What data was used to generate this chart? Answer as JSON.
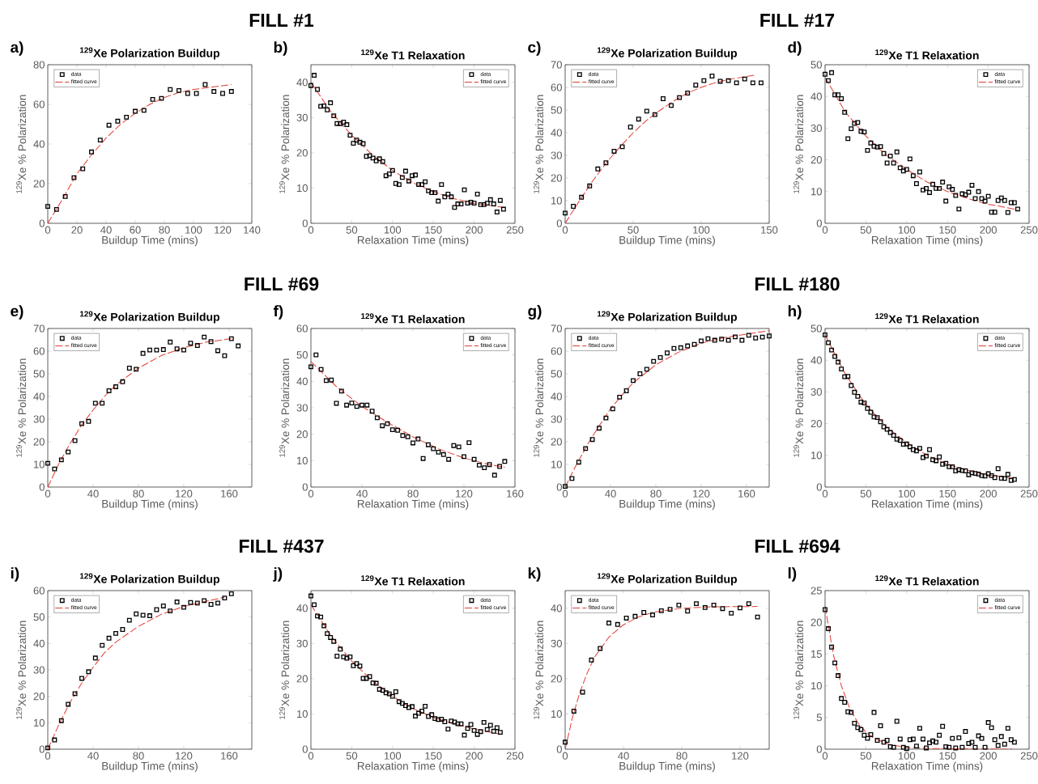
{
  "chart_data": [
    {
      "type": "scatter",
      "title": "$^{129}$Xe Polarization Buildup",
      "xlabel": "Buildup Time (mins)",
      "ylabel": "$^{129}$Xe % Polarization",
      "annotations": [
        "a)",
        "FILL #1"
      ],
      "xlim": [
        0,
        140
      ],
      "xticks": [
        0,
        20,
        40,
        60,
        80,
        100,
        120,
        140
      ],
      "ylim": [
        0,
        80
      ],
      "yticks": [
        0,
        20,
        40,
        60,
        80
      ],
      "legend": "top left",
      "series": [
        {
          "name": "data",
          "marker": "square",
          "color": "#000000",
          "x": [
            0,
            6,
            12,
            18,
            24,
            30,
            36,
            42,
            48,
            54,
            60,
            66,
            72,
            78,
            84,
            90,
            96,
            102,
            108,
            114,
            120,
            126
          ],
          "values": [
            8.5,
            7,
            13.5,
            23,
            27.5,
            36,
            42,
            49.5,
            51.5,
            53.5,
            56.5,
            57,
            62.5,
            63,
            67.5,
            67,
            65.5,
            65.5,
            70,
            66.5,
            65.5,
            66.5
          ]
        },
        {
          "name": "fitted curve",
          "type": "line",
          "line_style": "dashed",
          "color": "#e03c31",
          "x": [
            0,
            10,
            20,
            30,
            40,
            50,
            60,
            70,
            80,
            90,
            100,
            110,
            126
          ],
          "values": [
            0,
            12,
            25,
            34.5,
            43,
            50,
            55.5,
            60,
            63.5,
            66,
            67.5,
            68.5,
            70
          ]
        }
      ]
    },
    {
      "type": "scatter",
      "title": "$^{129}$Xe T1 Relaxation",
      "xlabel": "Relaxation Time (mins)",
      "ylabel": "$^{129}$Xe % Polarization",
      "annotations": [
        "b)"
      ],
      "xlim": [
        0,
        250
      ],
      "xticks": [
        0,
        50,
        100,
        150,
        200,
        250
      ],
      "ylim": [
        0,
        45
      ],
      "yticks": [
        0,
        10,
        20,
        30,
        40
      ],
      "legend": "top right",
      "series": [
        {
          "name": "data",
          "marker": "square",
          "color": "#000000",
          "x": [
            0,
            4,
            8,
            12,
            16,
            20,
            24,
            28,
            32,
            36,
            40,
            44,
            48,
            52,
            56,
            60,
            64,
            68,
            72,
            76,
            80,
            84,
            88,
            92,
            96,
            100,
            104,
            108,
            112,
            116,
            120,
            124,
            128,
            132,
            136,
            140,
            144,
            148,
            152,
            156,
            160,
            164,
            168,
            172,
            176,
            180,
            184,
            188,
            192,
            196,
            200,
            204,
            208,
            212,
            216,
            220,
            224,
            228,
            232,
            236
          ],
          "values": [
            39.1,
            42,
            38,
            33.2,
            33.3,
            32.2,
            34.2,
            30.5,
            28.3,
            28.3,
            28.7,
            28,
            25,
            22.7,
            23.6,
            23,
            22.6,
            19,
            19.2,
            18.5,
            17.7,
            18.3,
            17.5,
            13.5,
            14,
            15,
            11.3,
            11,
            13,
            14.8,
            12,
            13.5,
            13.7,
            11,
            11,
            11.8,
            9.2,
            8.7,
            8.7,
            6.3,
            11,
            7.5,
            8.3,
            7.5,
            4.5,
            5.5,
            5.5,
            9.5,
            5.7,
            6,
            5.7,
            8.3,
            5.3,
            5.3,
            5.7,
            6.7,
            5.5,
            3.2,
            6.5,
            4
          ]
        },
        {
          "name": "fitted curve",
          "type": "line",
          "line_style": "dashed",
          "color": "#e03c31",
          "x": [
            0,
            25,
            50,
            75,
            100,
            125,
            150,
            175,
            200,
            236
          ],
          "values": [
            40,
            31.5,
            25,
            19.5,
            15,
            11.5,
            9,
            7,
            5.7,
            4.5
          ]
        }
      ]
    },
    {
      "type": "scatter",
      "title": "$^{129}$Xe Polarization Buildup",
      "xlabel": "Buildup Time (mins)",
      "ylabel": "$^{129}$Xe % Polarization",
      "annotations": [
        "c)",
        "FILL #17"
      ],
      "xlim": [
        0,
        150
      ],
      "xticks": [
        0,
        50,
        100,
        150
      ],
      "ylim": [
        0,
        70
      ],
      "yticks": [
        0,
        10,
        20,
        30,
        40,
        50,
        60,
        70
      ],
      "legend": "top left",
      "series": [
        {
          "name": "data",
          "marker": "square",
          "color": "#000000",
          "x": [
            0,
            6,
            12,
            18,
            24,
            30,
            36,
            42,
            48,
            54,
            60,
            66,
            72,
            78,
            84,
            90,
            96,
            102,
            108,
            114,
            120,
            126,
            132,
            138,
            144
          ],
          "values": [
            4.5,
            7.5,
            11.5,
            16.5,
            24,
            26.7,
            31.8,
            33.8,
            42.5,
            46,
            49.5,
            48,
            55,
            52,
            55.5,
            57.5,
            61,
            63,
            65,
            62.7,
            63,
            62,
            63.7,
            62,
            62
          ]
        },
        {
          "name": "fitted curve",
          "type": "line",
          "line_style": "dashed",
          "color": "#e03c31",
          "x": [
            0,
            10,
            20,
            30,
            40,
            50,
            60,
            70,
            80,
            90,
            100,
            110,
            120,
            140
          ],
          "values": [
            0,
            9.5,
            18.5,
            26.5,
            33.5,
            40,
            45.5,
            50,
            54,
            57.5,
            60,
            62,
            63.5,
            65.5
          ]
        }
      ]
    },
    {
      "type": "scatter",
      "title": "$^{129}$Xe T1 Relaxation",
      "xlabel": "Relaxation Time (mins)",
      "ylabel": "$^{129}$Xe % Polarization",
      "annotations": [
        "d)"
      ],
      "xlim": [
        0,
        250
      ],
      "xticks": [
        0,
        50,
        100,
        150,
        200,
        250
      ],
      "ylim": [
        0,
        50
      ],
      "yticks": [
        0,
        10,
        20,
        30,
        40,
        50
      ],
      "legend": "top right",
      "series": [
        {
          "name": "data",
          "marker": "square",
          "color": "#000000",
          "x": [
            0,
            4,
            8,
            12,
            16,
            20,
            24,
            28,
            32,
            36,
            40,
            44,
            48,
            52,
            56,
            60,
            64,
            68,
            72,
            76,
            80,
            84,
            88,
            92,
            96,
            100,
            104,
            108,
            112,
            116,
            120,
            124,
            128,
            132,
            136,
            140,
            144,
            148,
            152,
            156,
            160,
            164,
            168,
            172,
            176,
            180,
            184,
            188,
            192,
            196,
            200,
            204,
            208,
            212,
            216,
            220,
            224,
            228,
            232,
            236
          ],
          "values": [
            47,
            45,
            47.5,
            40.5,
            40.5,
            39.3,
            35,
            26.7,
            29.8,
            31.5,
            31.8,
            29,
            28.8,
            23,
            25.3,
            24.3,
            24,
            24.2,
            22,
            19,
            21.2,
            19,
            22.5,
            17.5,
            16.5,
            17,
            20.3,
            15,
            12.5,
            16.2,
            10.5,
            11,
            9.7,
            12.3,
            11,
            11,
            13,
            7,
            11.5,
            10.7,
            8.8,
            4.5,
            9.3,
            9,
            9.8,
            12,
            7.8,
            10,
            7.8,
            7,
            8.5,
            3.5,
            3.5,
            7.2,
            8,
            7.2,
            3.4,
            6.5,
            6.5,
            4.5
          ]
        },
        {
          "name": "fitted curve",
          "type": "line",
          "line_style": "dashed",
          "color": "#e03c31",
          "x": [
            0,
            25,
            50,
            75,
            100,
            125,
            150,
            175,
            200,
            236
          ],
          "values": [
            46,
            35,
            27.5,
            21.5,
            17,
            13,
            10,
            7.8,
            6,
            4.3
          ]
        }
      ]
    },
    {
      "type": "scatter",
      "title": "$^{129}$Xe Polarization Buildup",
      "xlabel": "Buildup Time (mins)",
      "ylabel": "$^{129}$Xe % Polarization",
      "annotations": [
        "e)",
        "FILL #69"
      ],
      "xlim": [
        0,
        180
      ],
      "xticks": [
        0,
        40,
        80,
        120,
        160
      ],
      "ylim": [
        0,
        70
      ],
      "yticks": [
        0,
        10,
        20,
        30,
        40,
        50,
        60,
        70
      ],
      "legend": "top left",
      "series": [
        {
          "name": "data",
          "marker": "square",
          "color": "#000000",
          "x": [
            0,
            6,
            12,
            18,
            24,
            30,
            36,
            42,
            48,
            54,
            60,
            66,
            72,
            78,
            84,
            90,
            96,
            102,
            108,
            114,
            120,
            126,
            132,
            138,
            144,
            150,
            156,
            162,
            168
          ],
          "values": [
            10.5,
            8,
            12,
            15.5,
            20.5,
            28,
            29,
            37,
            37,
            42.5,
            44.3,
            46.5,
            52.5,
            52,
            59,
            60.5,
            60.5,
            60.7,
            64,
            61,
            60.5,
            63.5,
            62.5,
            66.2,
            64.2,
            60.2,
            58,
            65.5,
            62.3
          ]
        },
        {
          "name": "fitted curve",
          "type": "line",
          "line_style": "dashed",
          "color": "#e03c31",
          "x": [
            0,
            10,
            20,
            30,
            40,
            50,
            60,
            80,
            100,
            120,
            140,
            162
          ],
          "values": [
            0,
            10.5,
            19.5,
            27.5,
            34,
            40,
            45,
            52.5,
            58,
            61.5,
            64,
            65.5
          ]
        }
      ]
    },
    {
      "type": "scatter",
      "title": "$^{129}$Xe T1 Relaxation",
      "xlabel": "Relaxation Time (mins)",
      "ylabel": "$^{129}$Xe % Polarization",
      "annotations": [
        "f)"
      ],
      "xlim": [
        0,
        160
      ],
      "xticks": [
        0,
        40,
        80,
        120,
        160
      ],
      "ylim": [
        0,
        60
      ],
      "yticks": [
        0,
        10,
        20,
        30,
        40,
        50,
        60
      ],
      "legend": "top right",
      "series": [
        {
          "name": "data",
          "marker": "square",
          "color": "#000000",
          "x": [
            0,
            4,
            8,
            12,
            16,
            20,
            24,
            28,
            32,
            36,
            40,
            44,
            48,
            52,
            56,
            60,
            64,
            68,
            72,
            76,
            80,
            84,
            88,
            92,
            96,
            100,
            104,
            108,
            112,
            116,
            120,
            124,
            128,
            132,
            136,
            140,
            144,
            148,
            152
          ],
          "values": [
            45.5,
            50,
            44.5,
            40.3,
            40.5,
            31.7,
            36.3,
            31,
            31.8,
            30.5,
            31,
            31,
            28.7,
            26.2,
            23.2,
            24,
            21.7,
            21.5,
            19.5,
            19,
            16.7,
            18.2,
            10.8,
            16,
            14.5,
            13.2,
            12.3,
            10.5,
            15.7,
            15.2,
            11.5,
            16.8,
            10.5,
            8.3,
            7.3,
            8.5,
            4.5,
            7.8,
            9.7
          ]
        },
        {
          "name": "fitted curve",
          "type": "line",
          "line_style": "dashed",
          "color": "#e03c31",
          "x": [
            0,
            20,
            40,
            60,
            80,
            100,
            120,
            140,
            152
          ],
          "values": [
            47.5,
            38,
            30.5,
            24.5,
            19,
            14.5,
            11,
            8.5,
            7.5
          ]
        }
      ]
    },
    {
      "type": "scatter",
      "title": "$^{129}$Xe Polarization Buildup",
      "xlabel": "Buildup Time (mins)",
      "ylabel": "$^{129}$Xe % Polarization",
      "annotations": [
        "g)",
        "FILL #180"
      ],
      "xlim": [
        0,
        180
      ],
      "xticks": [
        0,
        40,
        80,
        120,
        160
      ],
      "ylim": [
        0,
        70
      ],
      "yticks": [
        0,
        10,
        20,
        30,
        40,
        50,
        60,
        70
      ],
      "legend": "top left",
      "series": [
        {
          "name": "data",
          "marker": "square",
          "color": "#000000",
          "x": [
            0,
            6,
            12,
            18,
            24,
            30,
            36,
            42,
            48,
            54,
            60,
            66,
            72,
            78,
            84,
            90,
            96,
            102,
            108,
            114,
            120,
            126,
            132,
            138,
            144,
            150,
            156,
            162,
            168,
            174,
            180
          ],
          "values": [
            0.3,
            3.8,
            11,
            17,
            21,
            26,
            30.5,
            34.5,
            39.7,
            42.5,
            47,
            50,
            52,
            55.5,
            57.2,
            59.2,
            61.2,
            61.5,
            62.3,
            63,
            64.5,
            65.5,
            64.8,
            65.3,
            64.8,
            66.3,
            64.8,
            67,
            65.8,
            66.2,
            66.7
          ]
        },
        {
          "name": "fitted curve",
          "type": "line",
          "line_style": "dashed",
          "color": "#e03c31",
          "x": [
            0,
            10,
            20,
            30,
            40,
            50,
            60,
            80,
            100,
            120,
            140,
            160,
            180
          ],
          "values": [
            0,
            10,
            19,
            27,
            34.5,
            40.5,
            46,
            54,
            59.5,
            63.5,
            66,
            67.5,
            69
          ]
        }
      ]
    },
    {
      "type": "scatter",
      "title": "$^{129}$Xe T1 Relaxation",
      "xlabel": "Relaxation Time (mins)",
      "ylabel": "$^{129}$Xe % Polarization",
      "annotations": [
        "h)"
      ],
      "xlim": [
        0,
        250
      ],
      "xticks": [
        0,
        50,
        100,
        150,
        200,
        250
      ],
      "ylim": [
        0,
        50
      ],
      "yticks": [
        0,
        10,
        20,
        30,
        40,
        50
      ],
      "legend": "top right",
      "series": [
        {
          "name": "data",
          "marker": "square",
          "color": "#000000",
          "x": [
            0,
            4,
            8,
            12,
            16,
            20,
            24,
            28,
            32,
            36,
            40,
            44,
            48,
            52,
            56,
            60,
            64,
            68,
            72,
            76,
            80,
            84,
            88,
            92,
            96,
            100,
            104,
            108,
            112,
            116,
            120,
            124,
            128,
            132,
            136,
            140,
            144,
            148,
            152,
            156,
            160,
            164,
            168,
            172,
            176,
            180,
            184,
            188,
            192,
            196,
            200,
            204,
            208,
            212,
            216,
            220,
            224,
            228,
            232
          ],
          "values": [
            48,
            45.5,
            43.2,
            41.2,
            39.4,
            37.2,
            34.8,
            34.9,
            32,
            29.9,
            28.6,
            26.8,
            26.5,
            24.8,
            23.6,
            22.1,
            21.9,
            20.6,
            19,
            18.2,
            17.2,
            16.3,
            15.1,
            14.7,
            13.5,
            13.6,
            12.7,
            11.8,
            11.4,
            12.2,
            9.3,
            9.8,
            11.8,
            8.6,
            8.3,
            9.5,
            7.2,
            7.5,
            6.4,
            6.4,
            5.1,
            5.5,
            5.2,
            5.1,
            3.9,
            4.5,
            4.3,
            4.1,
            3.6,
            3.5,
            4.2,
            3.6,
            3,
            5.8,
            2.8,
            2.7,
            4,
            2.1,
            2.4
          ]
        },
        {
          "name": "fitted curve",
          "type": "line",
          "line_style": "dashed",
          "color": "#e03c31",
          "x": [
            0,
            25,
            50,
            75,
            100,
            125,
            150,
            175,
            200,
            232
          ],
          "values": [
            48,
            35.5,
            26,
            19,
            14,
            10,
            7.2,
            5.2,
            3.8,
            2.7
          ]
        }
      ]
    },
    {
      "type": "scatter",
      "title": "$^{129}$Xe Polarization Buildup",
      "xlabel": "Buildup Time (mins)",
      "ylabel": "$^{129}$Xe % Polarization",
      "annotations": [
        "i)",
        "FILL #437"
      ],
      "xlim": [
        0,
        180
      ],
      "xticks": [
        0,
        40,
        80,
        120,
        160
      ],
      "ylim": [
        0,
        60
      ],
      "yticks": [
        0,
        10,
        20,
        30,
        40,
        50,
        60
      ],
      "legend": "top left",
      "series": [
        {
          "name": "data",
          "marker": "square",
          "color": "#000000",
          "x": [
            0,
            6,
            12,
            18,
            24,
            30,
            36,
            42,
            48,
            54,
            60,
            66,
            72,
            78,
            84,
            90,
            96,
            102,
            108,
            114,
            120,
            126,
            132,
            138,
            144,
            150,
            156,
            162
          ],
          "values": [
            0.5,
            3.5,
            10.8,
            17,
            21,
            26.8,
            29.3,
            34.5,
            39.3,
            42,
            43.8,
            45.3,
            48.8,
            51.2,
            50.7,
            50.5,
            52.8,
            54.2,
            52.3,
            55.7,
            53.7,
            55.5,
            55.3,
            56.2,
            54.8,
            55.3,
            57.2,
            58.8
          ]
        },
        {
          "name": "fitted curve",
          "type": "line",
          "line_style": "dashed",
          "color": "#e03c31",
          "x": [
            0,
            10,
            20,
            30,
            40,
            50,
            60,
            80,
            100,
            120,
            140,
            156
          ],
          "values": [
            0,
            9.5,
            18,
            25,
            31,
            36.5,
            40.5,
            46.5,
            51,
            54,
            56,
            57.5
          ]
        }
      ]
    },
    {
      "type": "scatter",
      "title": "$^{129}$Xe T1 Relaxation",
      "xlabel": "Relaxation Time (mins)",
      "ylabel": "$^{129}$Xe % Polarization",
      "annotations": [
        "j)"
      ],
      "xlim": [
        0,
        250
      ],
      "xticks": [
        0,
        50,
        100,
        150,
        200,
        250
      ],
      "ylim": [
        0,
        45
      ],
      "yticks": [
        0,
        10,
        20,
        30,
        40
      ],
      "legend": "top right",
      "series": [
        {
          "name": "data",
          "marker": "square",
          "color": "#000000",
          "x": [
            0,
            4,
            8,
            12,
            16,
            20,
            24,
            28,
            32,
            36,
            40,
            44,
            48,
            52,
            56,
            60,
            64,
            68,
            72,
            76,
            80,
            84,
            88,
            92,
            96,
            100,
            104,
            108,
            112,
            116,
            120,
            124,
            128,
            132,
            136,
            140,
            144,
            148,
            152,
            156,
            160,
            164,
            168,
            172,
            176,
            180,
            184,
            188,
            192,
            196,
            200,
            204,
            208,
            212,
            216,
            220,
            224,
            228,
            232
          ],
          "values": [
            43.5,
            41,
            37.8,
            37.5,
            35,
            32.8,
            31.7,
            30.6,
            26.4,
            28.4,
            26.2,
            25.8,
            26.2,
            23.7,
            24.3,
            23.6,
            20.1,
            20.1,
            20.6,
            18.8,
            18.7,
            17,
            16.7,
            16,
            15.7,
            15,
            16.3,
            13.5,
            13,
            12.4,
            11.8,
            12.1,
            9.4,
            10.2,
            10.8,
            12.2,
            9.3,
            9.8,
            8.7,
            8.4,
            8.5,
            7.8,
            5.7,
            8,
            7.7,
            7.2,
            7.2,
            4,
            5.9,
            7,
            5.3,
            4.2,
            5,
            7.6,
            5.6,
            6.8,
            5.1,
            6.1,
            4.8
          ]
        },
        {
          "name": "fitted curve",
          "type": "line",
          "line_style": "dashed",
          "color": "#e03c31",
          "x": [
            0,
            25,
            50,
            75,
            100,
            125,
            150,
            175,
            200,
            232
          ],
          "values": [
            41,
            32,
            25,
            19.5,
            15,
            11.5,
            9,
            7.2,
            5.7,
            4.3
          ]
        }
      ]
    },
    {
      "type": "scatter",
      "title": "$^{129}$Xe Polarization Buildup",
      "xlabel": "Buildup Time (mins)",
      "ylabel": "$^{129}$Xe % Polarization",
      "annotations": [
        "k)",
        "FILL #694"
      ],
      "xlim": [
        0,
        140
      ],
      "xticks": [
        0,
        40,
        80,
        120
      ],
      "ylim": [
        0,
        45
      ],
      "yticks": [
        0,
        10,
        20,
        30,
        40
      ],
      "legend": "top left",
      "series": [
        {
          "name": "data",
          "marker": "square",
          "color": "#000000",
          "x": [
            0,
            6,
            12,
            18,
            24,
            30,
            36,
            42,
            48,
            54,
            60,
            66,
            72,
            78,
            84,
            90,
            96,
            102,
            108,
            114,
            120,
            126,
            132
          ],
          "values": [
            2,
            10.8,
            16.2,
            25.3,
            28.6,
            35.8,
            35.4,
            37.2,
            37.7,
            38.8,
            38.1,
            39.3,
            39.7,
            40.9,
            39.2,
            41.3,
            40.2,
            40.9,
            39.9,
            38.6,
            40.1,
            41.3,
            37.5
          ]
        },
        {
          "name": "fitted curve",
          "type": "line",
          "line_style": "dashed",
          "color": "#e03c31",
          "x": [
            0,
            5,
            10,
            15,
            20,
            30,
            40,
            50,
            60,
            80,
            100,
            132
          ],
          "values": [
            0,
            9,
            16,
            21.5,
            26,
            31.8,
            35.3,
            37.5,
            38.8,
            40,
            40.4,
            40.5
          ]
        }
      ]
    },
    {
      "type": "scatter",
      "title": "$^{129}$Xe T1 Relaxation",
      "xlabel": "Relaxation Time (mins)",
      "ylabel": "$^{129}$Xe % Polarization",
      "annotations": [
        "l)"
      ],
      "xlim": [
        0,
        250
      ],
      "xticks": [
        0,
        50,
        100,
        150,
        200,
        250
      ],
      "ylim": [
        0,
        25
      ],
      "yticks": [
        0,
        5,
        10,
        15,
        20,
        25
      ],
      "legend": "top right",
      "series": [
        {
          "name": "data",
          "marker": "square",
          "color": "#000000",
          "x": [
            0,
            4,
            8,
            12,
            16,
            20,
            24,
            28,
            32,
            36,
            40,
            44,
            48,
            52,
            56,
            60,
            64,
            68,
            72,
            76,
            80,
            84,
            88,
            92,
            96,
            100,
            104,
            108,
            112,
            116,
            120,
            124,
            128,
            132,
            136,
            140,
            144,
            148,
            152,
            156,
            160,
            164,
            168,
            172,
            176,
            180,
            184,
            188,
            192,
            196,
            200,
            204,
            208,
            212,
            216,
            220,
            224,
            228,
            232
          ],
          "values": [
            22,
            19,
            16.1,
            13.6,
            11.6,
            8,
            7.4,
            5.9,
            5.8,
            4.1,
            3.4,
            3.1,
            2.2,
            1.7,
            2.3,
            5.8,
            1.4,
            3.7,
            1.1,
            1.4,
            0.4,
            0.3,
            4.4,
            1.6,
            0.3,
            0.1,
            1.5,
            1.6,
            0.5,
            3.3,
            1.6,
            0.2,
            1,
            1.3,
            1.1,
            2.2,
            3.6,
            0.4,
            0.3,
            1.7,
            0.2,
            1.8,
            0.3,
            2.8,
            0.9,
            1.1,
            0.3,
            2.1,
            1.7,
            0.3,
            4.2,
            3.4,
            1.5,
            0.6,
            2,
            0.8,
            3.3,
            1.5,
            1.1
          ]
        },
        {
          "name": "fitted curve",
          "type": "line",
          "line_style": "dashed",
          "color": "#e03c31",
          "x": [
            0,
            10,
            20,
            30,
            40,
            50,
            60,
            80,
            100,
            130,
            230
          ],
          "values": [
            22.5,
            15,
            10,
            6.5,
            4.2,
            2.7,
            1.7,
            0.7,
            0.3,
            0.1,
            0
          ]
        }
      ]
    }
  ]
}
